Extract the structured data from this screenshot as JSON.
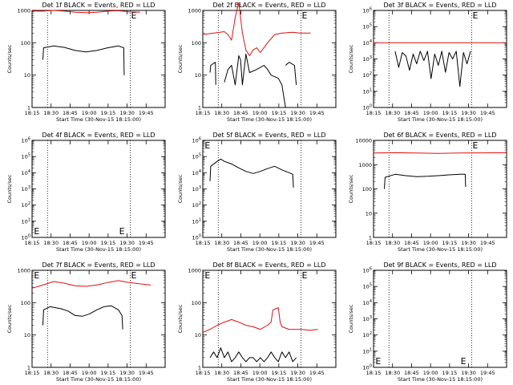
{
  "colors": {
    "events": "#000000",
    "lld": "#e01010",
    "frame": "#000000",
    "background": "#ffffff"
  },
  "x_tick_labels": [
    "18:15",
    "18:30",
    "18:45",
    "19:00",
    "19:15",
    "19:30",
    "19:45"
  ],
  "x_axis_label": "Start Time (30-Nov-15 18:15:00)",
  "y_axis_label": "Counts/sec",
  "edge_marker": "E",
  "chart_data": [
    {
      "type": "line",
      "title": "Det 1f BLACK = Events, RED = LLD",
      "xlabel": "Start Time (30-Nov-15 18:15:00)",
      "ylabel": "Counts/sec",
      "x_unit": "minutes after 18:15",
      "xlim": [
        0,
        37
      ],
      "ylim": [
        1,
        1000
      ],
      "yscale": "log",
      "y_tick_labels": [
        "1",
        "10",
        "100",
        "1000"
      ],
      "dotted_lines_x": [
        4.3,
        27.3
      ],
      "edge_markers_x": [
        27.3
      ],
      "series": [
        {
          "color": "events",
          "points": [
            [
              3,
              30
            ],
            [
              3.2,
              70
            ],
            [
              6,
              80
            ],
            [
              9,
              72
            ],
            [
              12,
              58
            ],
            [
              15,
              52
            ],
            [
              18,
              58
            ],
            [
              21,
              70
            ],
            [
              24,
              80
            ],
            [
              25.5,
              70
            ],
            [
              25.6,
              10
            ]
          ]
        },
        {
          "color": "lld",
          "points": [
            [
              0,
              960
            ],
            [
              3,
              950
            ],
            [
              6,
              1000
            ],
            [
              9,
              950
            ],
            [
              12,
              880
            ],
            [
              15,
              850
            ],
            [
              18,
              880
            ],
            [
              21,
              950
            ],
            [
              24,
              980
            ],
            [
              27,
              900
            ],
            [
              30,
              880
            ]
          ]
        }
      ]
    },
    {
      "type": "line",
      "title": "Det 2f BLACK = Events, RED = LLD",
      "xlabel": "Start Time (30-Nov-15 18:15:00)",
      "ylabel": "Counts/sec",
      "x_unit": "minutes after 18:15",
      "xlim": [
        0,
        37
      ],
      "ylim": [
        1,
        1000
      ],
      "yscale": "log",
      "y_tick_labels": [
        "1",
        "10",
        "100",
        "1000"
      ],
      "dotted_lines_x": [
        4.3,
        27.3
      ],
      "edge_markers_x": [
        27.3
      ],
      "series": [
        {
          "color": "events",
          "points": [
            [
              2,
              12
            ],
            [
              2.2,
              20
            ],
            [
              3.5,
              25
            ],
            [
              3.6,
              5
            ]
          ]
        },
        {
          "color": "events",
          "points": [
            [
              6,
              6
            ],
            [
              7,
              15
            ],
            [
              8,
              20
            ],
            [
              9,
              5
            ],
            [
              10,
              40
            ],
            [
              10.5,
              30
            ],
            [
              11,
              5
            ],
            [
              12,
              45
            ],
            [
              13,
              12
            ],
            [
              15,
              15
            ],
            [
              17,
              20
            ],
            [
              18,
              15
            ],
            [
              19,
              10
            ],
            [
              21,
              8
            ],
            [
              22,
              5
            ],
            [
              23,
              1
            ]
          ]
        },
        {
          "color": "events",
          "points": [
            [
              23,
              20
            ],
            [
              24,
              25
            ],
            [
              25.5,
              20
            ],
            [
              26,
              5
            ]
          ]
        },
        {
          "color": "lld",
          "points": [
            [
              0,
              180
            ],
            [
              3,
              200
            ],
            [
              6,
              220
            ],
            [
              7,
              180
            ],
            [
              8,
              120
            ],
            [
              9,
              600
            ],
            [
              10,
              2000
            ],
            [
              11,
              200
            ],
            [
              12,
              60
            ],
            [
              13,
              40
            ],
            [
              14,
              60
            ],
            [
              15,
              70
            ],
            [
              16,
              50
            ],
            [
              18,
              100
            ],
            [
              20,
              180
            ],
            [
              22,
              200
            ],
            [
              25,
              210
            ],
            [
              27,
              200
            ],
            [
              30,
              200
            ]
          ]
        }
      ]
    },
    {
      "type": "line",
      "title": "Det 3f BLACK = Events, RED = LLD",
      "xlabel": "Start Time (30-Nov-15 18:15:00)",
      "ylabel": "Counts/sec",
      "x_unit": "minutes after 18:15",
      "xlim": [
        0,
        37
      ],
      "ylim": [
        1,
        1000000
      ],
      "yscale": "log",
      "y_tick_labels": [
        "10^0",
        "10^1",
        "10^2",
        "10^3",
        "10^4",
        "10^5",
        "10^6"
      ],
      "dotted_lines_x": [
        4.3,
        27.3
      ],
      "edge_markers_x": [
        27.3
      ],
      "series": [
        {
          "color": "events",
          "points": [
            [
              6,
              3000
            ],
            [
              7,
              300
            ],
            [
              8,
              2500
            ],
            [
              9,
              1500
            ],
            [
              10,
              200
            ],
            [
              11,
              2000
            ],
            [
              12,
              500
            ],
            [
              13,
              3000
            ],
            [
              14,
              800
            ],
            [
              15,
              3000
            ],
            [
              16,
              60
            ],
            [
              17,
              2000
            ],
            [
              18,
              400
            ],
            [
              19,
              3000
            ],
            [
              20,
              150
            ],
            [
              21,
              2500
            ],
            [
              22,
              1000
            ],
            [
              23,
              3000
            ],
            [
              24,
              20
            ],
            [
              25,
              2500
            ],
            [
              26,
              500
            ],
            [
              27,
              3000
            ]
          ]
        },
        {
          "color": "lld",
          "points": [
            [
              0,
              10000
            ],
            [
              37,
              10000
            ]
          ]
        }
      ]
    },
    {
      "type": "line",
      "title": "Det 4f BLACK = Events, RED = LLD",
      "xlabel": "Start Time (30-Nov-15 18:15:00)",
      "ylabel": "Counts/sec",
      "x_unit": "minutes after 18:15",
      "xlim": [
        0,
        37
      ],
      "ylim": [
        1,
        1000000
      ],
      "yscale": "log",
      "y_tick_labels": [
        "10^0",
        "10^1",
        "10^2",
        "10^3",
        "10^4",
        "10^5",
        "10^6"
      ],
      "dotted_lines_x": [
        4.3,
        27.3
      ],
      "edge_markers_x": [
        0.3,
        24.0
      ],
      "series": []
    },
    {
      "type": "line",
      "title": "Det 5f BLACK = Events, RED = LLD",
      "xlabel": "Start Time (30-Nov-15 18:15:00)",
      "ylabel": "Counts/sec",
      "x_unit": "minutes after 18:15",
      "xlim": [
        0,
        37
      ],
      "ylim": [
        1,
        1000000
      ],
      "yscale": "log",
      "y_tick_labels": [
        "10^0",
        "10^1",
        "10^2",
        "10^3",
        "10^4",
        "10^5",
        "10^6"
      ],
      "dotted_lines_x": [
        4.3,
        27.3
      ],
      "edge_markers_x": [
        0.3
      ],
      "series": [
        {
          "color": "events",
          "points": [
            [
              2,
              3000
            ],
            [
              2.2,
              25000
            ],
            [
              4,
              50000
            ],
            [
              5,
              70000
            ],
            [
              6,
              50000
            ],
            [
              8,
              35000
            ],
            [
              10,
              20000
            ],
            [
              12,
              12000
            ],
            [
              14,
              9000
            ],
            [
              16,
              12000
            ],
            [
              18,
              18000
            ],
            [
              20,
              25000
            ],
            [
              22,
              15000
            ],
            [
              24,
              10000
            ],
            [
              25,
              8000
            ],
            [
              25.2,
              1200
            ]
          ]
        }
      ]
    },
    {
      "type": "line",
      "title": "Det 6f BLACK = Events, RED = LLD",
      "xlabel": "Start Time (30-Nov-15 18:15:00)",
      "ylabel": "Counts/sec",
      "x_unit": "minutes after 18:15",
      "xlim": [
        0,
        37
      ],
      "ylim": [
        1,
        10000
      ],
      "yscale": "log",
      "y_tick_labels": [
        "1",
        "10",
        "100",
        "1000",
        "10000"
      ],
      "dotted_lines_x": [
        4.3,
        27.3
      ],
      "edge_markers_x": [
        27.3
      ],
      "series": [
        {
          "color": "events",
          "points": [
            [
              3,
              100
            ],
            [
              3.2,
              300
            ],
            [
              6,
              400
            ],
            [
              9,
              350
            ],
            [
              12,
              320
            ],
            [
              15,
              330
            ],
            [
              18,
              350
            ],
            [
              21,
              380
            ],
            [
              24,
              400
            ],
            [
              25.5,
              400
            ],
            [
              25.6,
              120
            ]
          ]
        },
        {
          "color": "lld",
          "points": [
            [
              0,
              3000
            ],
            [
              6,
              3100
            ],
            [
              12,
              3000
            ],
            [
              18,
              2900
            ],
            [
              24,
              3000
            ],
            [
              30,
              3050
            ],
            [
              37,
              3100
            ]
          ]
        }
      ]
    },
    {
      "type": "line",
      "title": "Det 7f BLACK = Events, RED = LLD",
      "xlabel": "Start Time (30-Nov-15 18:15:00)",
      "ylabel": "Counts/sec",
      "x_unit": "minutes after 18:15",
      "xlim": [
        0,
        37
      ],
      "ylim": [
        1,
        1000
      ],
      "yscale": "log",
      "y_tick_labels": [
        "1",
        "10",
        "100",
        "1000"
      ],
      "dotted_lines_x": [
        4.3,
        27.3
      ],
      "edge_markers_x": [
        0.3,
        27.3
      ],
      "series": [
        {
          "color": "events",
          "points": [
            [
              3,
              20
            ],
            [
              3.2,
              60
            ],
            [
              5,
              75
            ],
            [
              8,
              65
            ],
            [
              10,
              55
            ],
            [
              12,
              40
            ],
            [
              14,
              38
            ],
            [
              16,
              45
            ],
            [
              18,
              60
            ],
            [
              20,
              75
            ],
            [
              22,
              80
            ],
            [
              24,
              60
            ],
            [
              25,
              40
            ],
            [
              25.2,
              15
            ]
          ]
        },
        {
          "color": "lld",
          "points": [
            [
              0,
              280
            ],
            [
              3,
              350
            ],
            [
              6,
              450
            ],
            [
              9,
              400
            ],
            [
              12,
              330
            ],
            [
              15,
              320
            ],
            [
              18,
              350
            ],
            [
              21,
              420
            ],
            [
              24,
              480
            ],
            [
              27,
              420
            ],
            [
              30,
              380
            ],
            [
              33,
              350
            ]
          ]
        }
      ]
    },
    {
      "type": "line",
      "title": "Det 8f BLACK = Events, RED = LLD",
      "xlabel": "Start Time (30-Nov-15 18:15:00)",
      "ylabel": "Counts/sec",
      "x_unit": "minutes after 18:15",
      "xlim": [
        0,
        37
      ],
      "ylim": [
        1,
        1000
      ],
      "yscale": "log",
      "y_tick_labels": [
        "1",
        "10",
        "100",
        "1000"
      ],
      "dotted_lines_x": [
        4.3,
        27.3
      ],
      "edge_markers_x": [
        0.3,
        27.3
      ],
      "series": [
        {
          "color": "events",
          "points": [
            [
              2,
              2
            ],
            [
              3,
              3
            ],
            [
              4,
              2
            ],
            [
              5,
              4
            ],
            [
              6,
              2
            ],
            [
              7,
              3
            ],
            [
              8,
              1.5
            ],
            [
              9,
              2
            ],
            [
              10,
              3
            ],
            [
              11,
              2
            ],
            [
              12,
              1.5
            ],
            [
              13,
              2
            ],
            [
              14,
              2
            ],
            [
              15,
              1.5
            ],
            [
              16,
              2
            ],
            [
              17,
              1.5
            ],
            [
              18,
              2
            ],
            [
              19,
              3
            ],
            [
              20,
              2
            ],
            [
              21,
              1.5
            ],
            [
              22,
              3
            ],
            [
              23,
              2
            ],
            [
              24,
              3
            ],
            [
              25,
              1.5
            ],
            [
              26,
              2
            ]
          ]
        },
        {
          "color": "lld",
          "points": [
            [
              0,
              12
            ],
            [
              2,
              15
            ],
            [
              4,
              20
            ],
            [
              6,
              25
            ],
            [
              8,
              30
            ],
            [
              10,
              25
            ],
            [
              12,
              20
            ],
            [
              14,
              18
            ],
            [
              16,
              15
            ],
            [
              18,
              20
            ],
            [
              19,
              25
            ],
            [
              19.5,
              60
            ],
            [
              21,
              70
            ],
            [
              21.5,
              25
            ],
            [
              22,
              18
            ],
            [
              24,
              15
            ],
            [
              27,
              15
            ],
            [
              30,
              14
            ],
            [
              32,
              15
            ]
          ]
        }
      ]
    },
    {
      "type": "line",
      "title": "Det 9f BLACK = Events, RED = LLD",
      "xlabel": "Start Time (30-Nov-15 18:15:00)",
      "ylabel": "Counts/sec",
      "x_unit": "minutes after 18:15",
      "xlim": [
        0,
        37
      ],
      "ylim": [
        1,
        1000000
      ],
      "yscale": "log",
      "y_tick_labels": [
        "10^0",
        "10^1",
        "10^2",
        "10^3",
        "10^4",
        "10^5",
        "10^6"
      ],
      "dotted_lines_x": [
        4.3,
        27.3
      ],
      "edge_markers_x": [
        0.3,
        24.0
      ],
      "series": []
    }
  ]
}
